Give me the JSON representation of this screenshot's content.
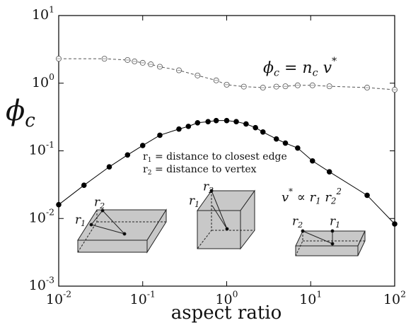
{
  "chart_data": {
    "type": "line",
    "x_label": "aspect ratio",
    "y_label": "ϕ_c",
    "log_x": true,
    "log_y": true,
    "xlim": [
      0.01,
      100
    ],
    "ylim": [
      0.001,
      10
    ],
    "xticks": [
      {
        "value": 0.01,
        "label": "10^{-2}"
      },
      {
        "value": 0.1,
        "label": "10^{-1}"
      },
      {
        "value": 1,
        "label": "10^0"
      },
      {
        "value": 10,
        "label": "10^1"
      },
      {
        "value": 100,
        "label": "10^2"
      }
    ],
    "yticks": [
      {
        "value": 0.001,
        "label": "10^{-3}"
      },
      {
        "value": 0.01,
        "label": "10^{-2}"
      },
      {
        "value": 0.1,
        "label": "10^{-1}"
      },
      {
        "value": 1,
        "label": "10^0"
      },
      {
        "value": 10,
        "label": "10^1"
      }
    ],
    "series": [
      {
        "color": "#555555",
        "line_style": "dashed",
        "marker": "open",
        "x": [
          0.01,
          0.035,
          0.066,
          0.08,
          0.1,
          0.125,
          0.16,
          0.27,
          0.45,
          0.75,
          1,
          1.6,
          2.7,
          3.9,
          5,
          7,
          10.5,
          16.7,
          47,
          100
        ],
        "values": [
          2.3,
          2.3,
          2.2,
          2.1,
          2.0,
          1.9,
          1.75,
          1.55,
          1.3,
          1.1,
          0.95,
          0.89,
          0.86,
          0.89,
          0.9,
          0.93,
          0.93,
          0.9,
          0.86,
          0.8
        ]
      },
      {
        "color": "#000000",
        "line_style": "solid",
        "marker": "filled",
        "x": [
          0.01,
          0.02,
          0.04,
          0.066,
          0.1,
          0.16,
          0.27,
          0.35,
          0.45,
          0.6,
          0.75,
          1,
          1.3,
          1.7,
          2.2,
          2.7,
          3.9,
          5,
          7,
          10.5,
          16.7,
          47,
          100
        ],
        "values": [
          0.016,
          0.031,
          0.058,
          0.087,
          0.12,
          0.17,
          0.21,
          0.23,
          0.26,
          0.27,
          0.28,
          0.28,
          0.27,
          0.25,
          0.22,
          0.19,
          0.15,
          0.13,
          0.11,
          0.071,
          0.049,
          0.022,
          0.0083
        ]
      }
    ],
    "annotations": [
      "ϕ_c = n_c v^*",
      "r_1 = distance to closest edge",
      "r_2 = distance to vertex",
      "v^* ∝ r_1 r_2^2"
    ],
    "diagram_labels": [
      "r_2",
      "r_1",
      "r_2",
      "r_1",
      "r_2",
      "r_1"
    ]
  }
}
